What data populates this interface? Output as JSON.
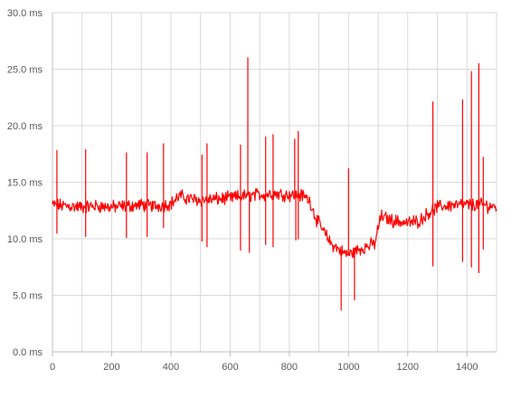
{
  "chart_data": {
    "type": "line",
    "title": "",
    "xlabel": "",
    "ylabel": "",
    "xlim": [
      0,
      1500
    ],
    "ylim": [
      0,
      30
    ],
    "x_ticks": [
      0,
      200,
      400,
      600,
      800,
      1000,
      1200,
      1400
    ],
    "x_tick_labels": [
      "0",
      "200",
      "400",
      "600",
      "800",
      "1000",
      "1200",
      "1400"
    ],
    "y_ticks": [
      0,
      5,
      10,
      15,
      20,
      25,
      30
    ],
    "y_tick_labels": [
      "0.0 ms",
      "5.0 ms",
      "10.0 ms",
      "15.0 ms",
      "20.0 ms",
      "25.0 ms",
      "30.0 ms"
    ],
    "grid": {
      "vertical": true,
      "horizontal": true
    },
    "legend": "none",
    "series": [
      {
        "color": "#ff0000",
        "baseline": [
          [
            0,
            13.0
          ],
          [
            50,
            12.9
          ],
          [
            100,
            12.8
          ],
          [
            150,
            12.9
          ],
          [
            200,
            12.8
          ],
          [
            250,
            12.9
          ],
          [
            300,
            13.0
          ],
          [
            350,
            12.9
          ],
          [
            400,
            13.1
          ],
          [
            430,
            13.8
          ],
          [
            450,
            13.6
          ],
          [
            500,
            13.4
          ],
          [
            550,
            13.5
          ],
          [
            600,
            13.6
          ],
          [
            650,
            13.8
          ],
          [
            700,
            13.9
          ],
          [
            750,
            14.0
          ],
          [
            800,
            13.9
          ],
          [
            850,
            13.8
          ],
          [
            870,
            13.3
          ],
          [
            890,
            11.8
          ],
          [
            910,
            10.9
          ],
          [
            940,
            9.6
          ],
          [
            960,
            9.2
          ],
          [
            980,
            8.8
          ],
          [
            1000,
            8.6
          ],
          [
            1030,
            9.0
          ],
          [
            1060,
            9.3
          ],
          [
            1090,
            9.6
          ],
          [
            1100,
            11.0
          ],
          [
            1110,
            12.0
          ],
          [
            1150,
            11.6
          ],
          [
            1200,
            11.4
          ],
          [
            1240,
            11.6
          ],
          [
            1270,
            12.3
          ],
          [
            1300,
            12.8
          ],
          [
            1350,
            13.0
          ],
          [
            1400,
            13.0
          ],
          [
            1450,
            13.0
          ],
          [
            1500,
            12.8
          ]
        ],
        "spikes": [
          [
            15,
            17.8
          ],
          [
            15,
            10.5
          ],
          [
            112,
            17.9
          ],
          [
            112,
            10.2
          ],
          [
            250,
            17.6
          ],
          [
            250,
            10.1
          ],
          [
            320,
            17.6
          ],
          [
            320,
            10.2
          ],
          [
            375,
            18.4
          ],
          [
            375,
            11.0
          ],
          [
            505,
            17.4
          ],
          [
            505,
            9.8
          ],
          [
            522,
            18.4
          ],
          [
            522,
            9.3
          ],
          [
            635,
            18.3
          ],
          [
            635,
            9.0
          ],
          [
            660,
            26.0
          ],
          [
            665,
            8.8
          ],
          [
            720,
            19.0
          ],
          [
            720,
            9.5
          ],
          [
            745,
            19.2
          ],
          [
            745,
            9.3
          ],
          [
            818,
            18.8
          ],
          [
            822,
            9.9
          ],
          [
            830,
            19.5
          ],
          [
            830,
            10.0
          ],
          [
            975,
            3.7
          ],
          [
            1000,
            16.2
          ],
          [
            1020,
            4.6
          ],
          [
            1285,
            22.1
          ],
          [
            1285,
            7.6
          ],
          [
            1385,
            22.3
          ],
          [
            1385,
            8.0
          ],
          [
            1415,
            24.8
          ],
          [
            1415,
            7.5
          ],
          [
            1440,
            25.5
          ],
          [
            1440,
            7.0
          ],
          [
            1455,
            17.2
          ],
          [
            1455,
            9.1
          ]
        ]
      }
    ]
  }
}
